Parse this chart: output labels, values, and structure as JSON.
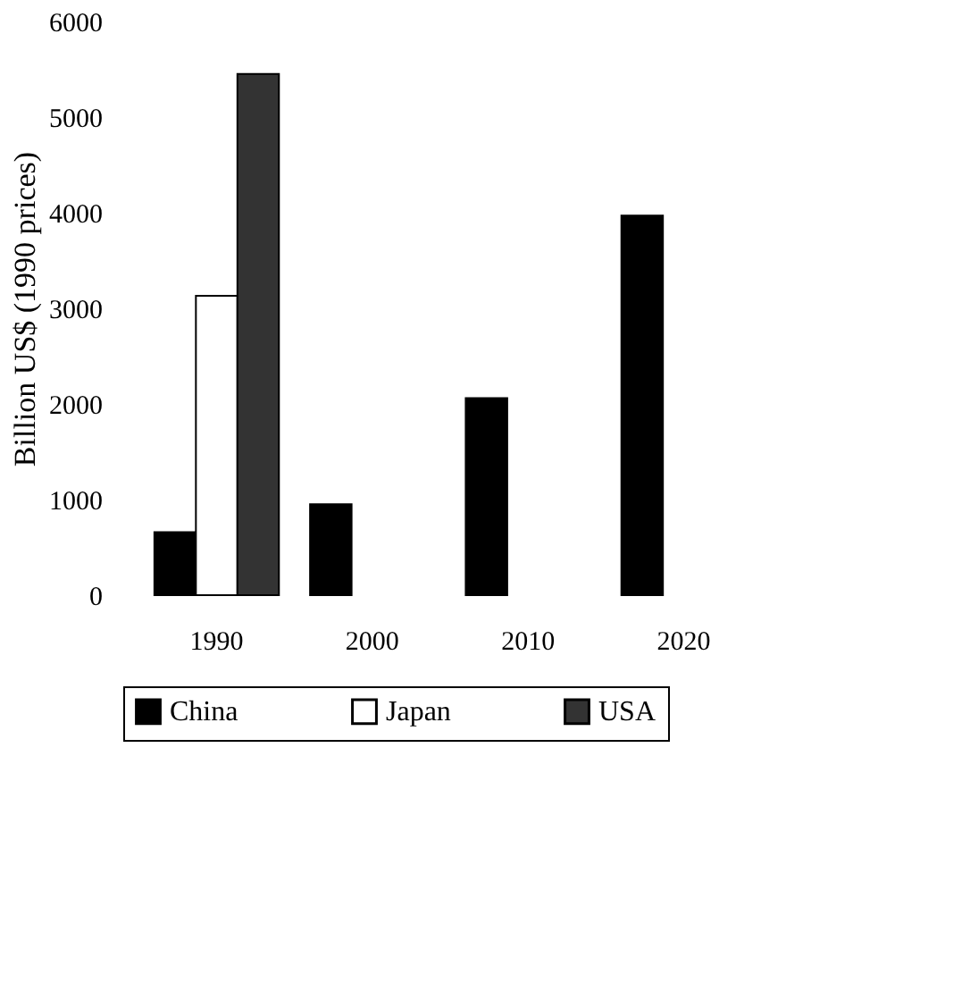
{
  "chart_data": {
    "type": "bar",
    "ylabel": "Billion US$ (1990 prices)",
    "categories": [
      "1990",
      "2000",
      "2010",
      "2020"
    ],
    "series": [
      {
        "name": "China",
        "color": "#000000",
        "values": [
          660,
          950,
          2060,
          3970
        ]
      },
      {
        "name": "Japan",
        "color": "#ffffff",
        "values": [
          3130,
          null,
          null,
          null
        ]
      },
      {
        "name": "USA",
        "color": "#333333",
        "values": [
          5450,
          null,
          null,
          null
        ]
      }
    ],
    "ylim": [
      0,
      6000
    ],
    "yticks": [
      0,
      1000,
      2000,
      3000,
      4000,
      5000,
      6000
    ],
    "grid": false,
    "legend": "bottom"
  }
}
